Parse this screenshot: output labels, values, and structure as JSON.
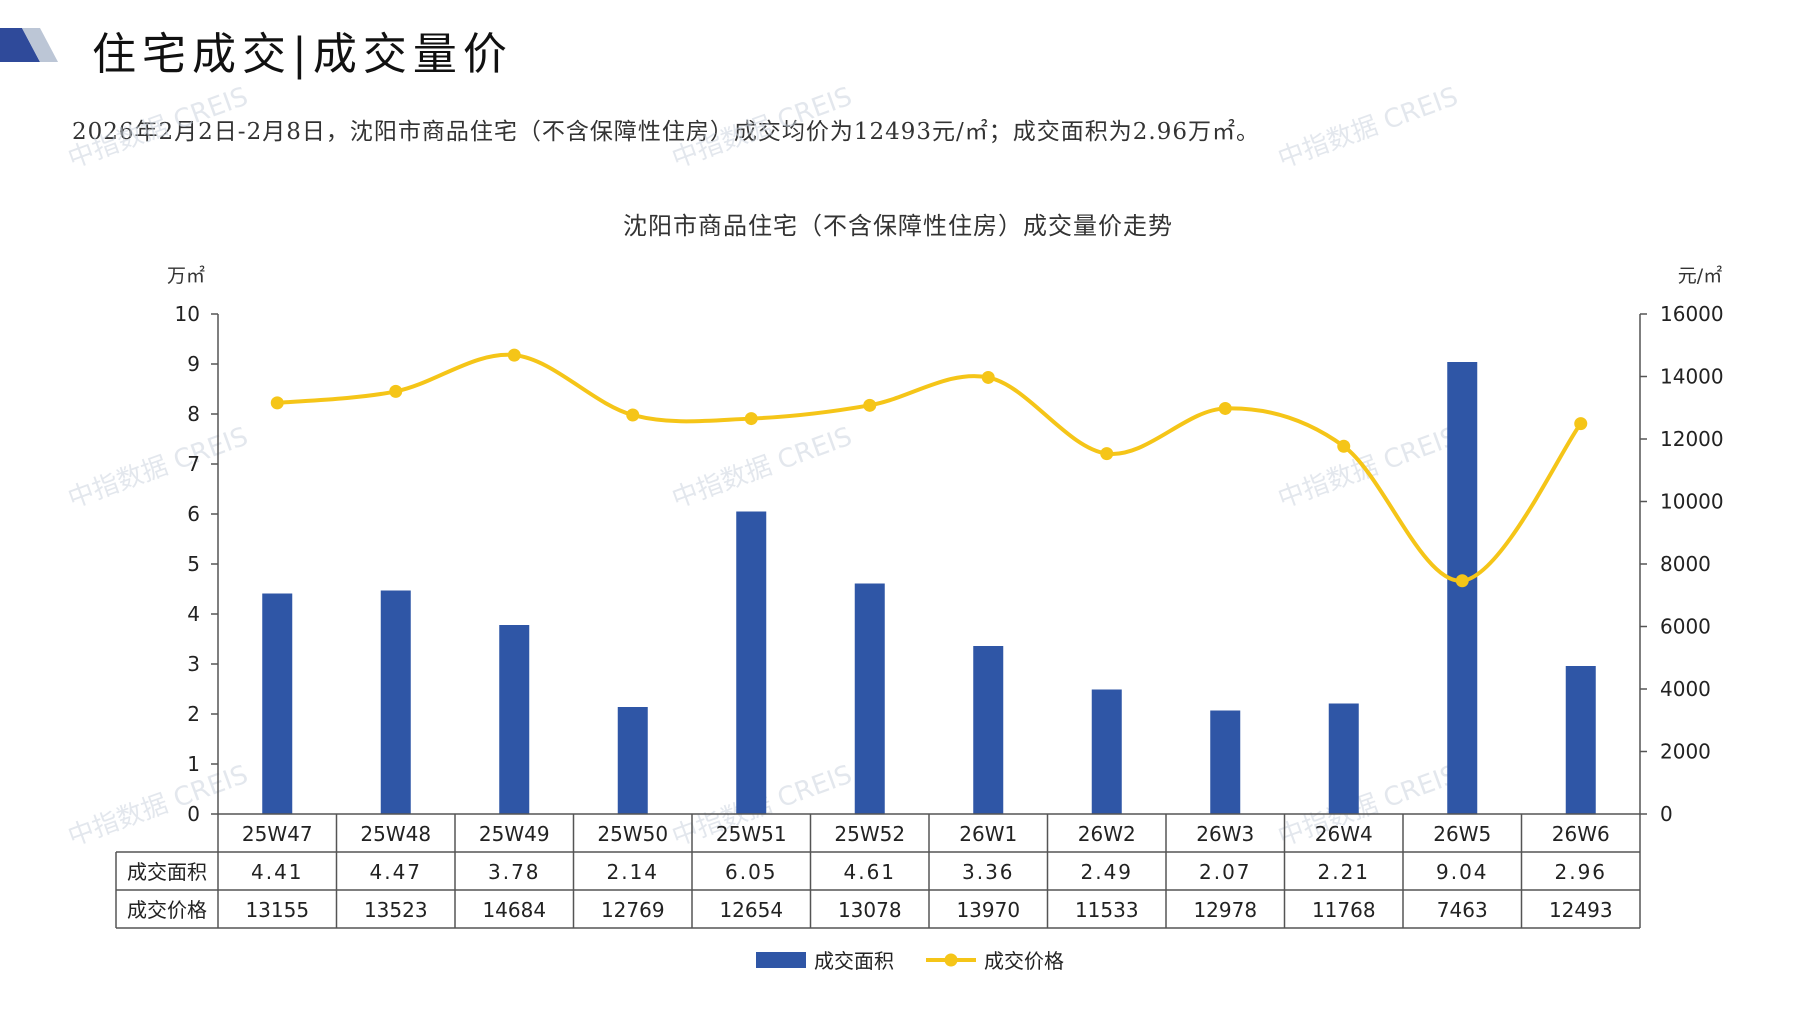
{
  "page": {
    "title": "住宅成交|成交量价",
    "summary": "2026年2月2日-2月8日，沈阳市商品住宅（不含保障性住房）成交均价为12493元/㎡；成交面积为2.96万㎡。",
    "watermark": "中指数据 CREIS"
  },
  "colors": {
    "bar": "#2f56a6",
    "line": "#f5c518",
    "axis": "#555555",
    "logo_dark": "#2f4a9a",
    "logo_light": "#bcc6d6"
  },
  "chart_data": {
    "type": "bar+line",
    "title": "沈阳市商品住宅（不含保障性住房）成交量价走势",
    "y_left_unit": "万㎡",
    "y_right_unit": "元/㎡",
    "y_left_range": [
      0,
      10
    ],
    "y_left_ticks": [
      "0",
      "1",
      "2",
      "3",
      "4",
      "5",
      "6",
      "7",
      "8",
      "9",
      "10"
    ],
    "y_right_range": [
      0,
      16000
    ],
    "y_right_ticks": [
      "0",
      "2000",
      "4000",
      "6000",
      "8000",
      "10000",
      "12000",
      "14000",
      "16000"
    ],
    "categories": [
      "25W47",
      "25W48",
      "25W49",
      "25W50",
      "25W51",
      "25W52",
      "26W1",
      "26W2",
      "26W3",
      "26W4",
      "26W5",
      "26W6"
    ],
    "series": [
      {
        "name": "成交面积",
        "type": "bar",
        "axis": "left",
        "values": [
          4.41,
          4.47,
          3.78,
          2.14,
          6.05,
          4.61,
          3.36,
          2.49,
          2.07,
          2.21,
          9.04,
          2.96
        ],
        "labels": [
          "4.41",
          "4.47",
          "3.78",
          "2.14",
          "6.05",
          "4.61",
          "3.36",
          "2.49",
          "2.07",
          "2.21",
          "9.04",
          "2.96"
        ]
      },
      {
        "name": "成交价格",
        "type": "line",
        "axis": "right",
        "values": [
          13155,
          13523,
          14684,
          12769,
          12654,
          13078,
          13970,
          11533,
          12978,
          11768,
          7463,
          12493
        ],
        "labels": [
          "13155",
          "13523",
          "14684",
          "12769",
          "12654",
          "13078",
          "13970",
          "11533",
          "12978",
          "11768",
          "7463",
          "12493"
        ]
      }
    ],
    "legend_position": "bottom",
    "grid": false
  }
}
